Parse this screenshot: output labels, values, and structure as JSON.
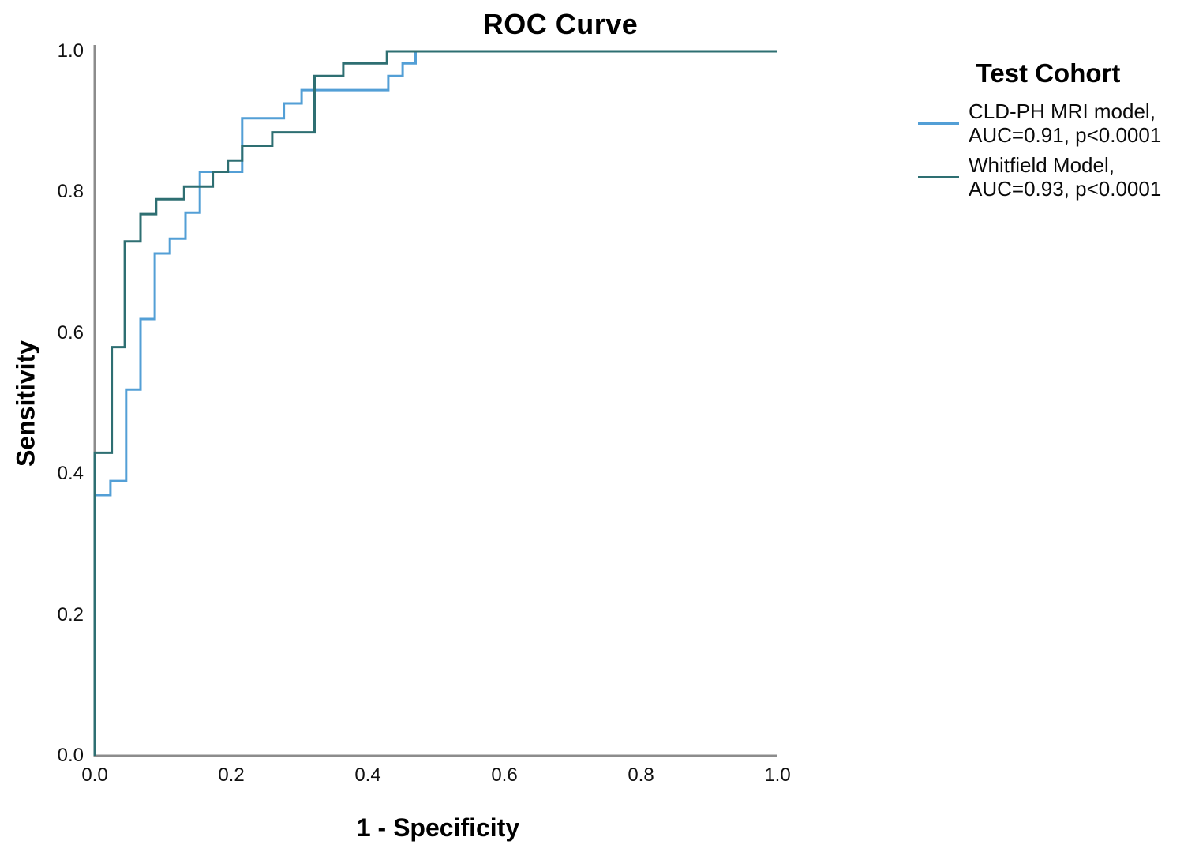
{
  "chart_data": {
    "type": "line",
    "variant": "roc-step-curve",
    "title": "ROC Curve",
    "xlabel": "1 - Specificity",
    "ylabel": "Sensitivity",
    "xlim": [
      0.0,
      1.0
    ],
    "ylim": [
      0.0,
      1.0
    ],
    "xtick_values": [
      0.0,
      0.2,
      0.4,
      0.6,
      0.8,
      1.0
    ],
    "ytick_values": [
      0.0,
      0.2,
      0.4,
      0.6,
      0.8,
      1.0
    ],
    "xtick_labels": [
      "0.0",
      "0.2",
      "0.4",
      "0.6",
      "0.8",
      "1.0"
    ],
    "ytick_labels": [
      "0.0",
      "0.2",
      "0.4",
      "0.6",
      "0.8",
      "1.0"
    ],
    "grid": false,
    "axis_color": "#8c8c8c",
    "text_color": "#000000",
    "legend_position": "right-top",
    "legend": {
      "title": "Test Cohort",
      "entries": [
        {
          "line1": "CLD-PH MRI model,",
          "line2": "AUC=0.91, p<0.0001"
        },
        {
          "line1": "Whitfield Model,",
          "line2": "AUC=0.93, p<0.0001"
        }
      ]
    },
    "series": [
      {
        "name": "CLD-PH MRI model",
        "auc": 0.91,
        "p_value": "p<0.0001",
        "color": "#539FD6",
        "points": [
          [
            0.0,
            0.0
          ],
          [
            0.0,
            0.37
          ],
          [
            0.023,
            0.37
          ],
          [
            0.023,
            0.39
          ],
          [
            0.046,
            0.39
          ],
          [
            0.046,
            0.52
          ],
          [
            0.067,
            0.52
          ],
          [
            0.067,
            0.62
          ],
          [
            0.088,
            0.62
          ],
          [
            0.088,
            0.713
          ],
          [
            0.11,
            0.713
          ],
          [
            0.11,
            0.734
          ],
          [
            0.133,
            0.734
          ],
          [
            0.133,
            0.771
          ],
          [
            0.154,
            0.771
          ],
          [
            0.154,
            0.829
          ],
          [
            0.216,
            0.829
          ],
          [
            0.216,
            0.905
          ],
          [
            0.277,
            0.905
          ],
          [
            0.277,
            0.926
          ],
          [
            0.303,
            0.926
          ],
          [
            0.303,
            0.945
          ],
          [
            0.43,
            0.945
          ],
          [
            0.43,
            0.965
          ],
          [
            0.451,
            0.965
          ],
          [
            0.451,
            0.983
          ],
          [
            0.47,
            0.983
          ],
          [
            0.47,
            1.0
          ],
          [
            1.0,
            1.0
          ]
        ]
      },
      {
        "name": "Whitfield Model",
        "auc": 0.93,
        "p_value": "p<0.0001",
        "color": "#2E6F72",
        "points": [
          [
            0.0,
            0.0
          ],
          [
            0.0,
            0.43
          ],
          [
            0.025,
            0.43
          ],
          [
            0.025,
            0.58
          ],
          [
            0.044,
            0.58
          ],
          [
            0.044,
            0.73
          ],
          [
            0.067,
            0.73
          ],
          [
            0.067,
            0.769
          ],
          [
            0.09,
            0.769
          ],
          [
            0.09,
            0.79
          ],
          [
            0.131,
            0.79
          ],
          [
            0.131,
            0.808
          ],
          [
            0.173,
            0.808
          ],
          [
            0.173,
            0.829
          ],
          [
            0.195,
            0.829
          ],
          [
            0.195,
            0.845
          ],
          [
            0.216,
            0.845
          ],
          [
            0.216,
            0.866
          ],
          [
            0.26,
            0.866
          ],
          [
            0.26,
            0.885
          ],
          [
            0.322,
            0.885
          ],
          [
            0.322,
            0.965
          ],
          [
            0.364,
            0.965
          ],
          [
            0.364,
            0.983
          ],
          [
            0.428,
            0.983
          ],
          [
            0.428,
            1.0
          ],
          [
            1.0,
            1.0
          ]
        ]
      }
    ]
  }
}
